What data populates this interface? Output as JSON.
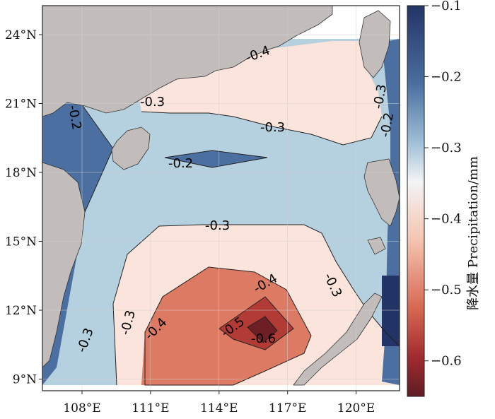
{
  "map": {
    "lat_ticks": [
      {
        "value": 24,
        "label": "24°N"
      },
      {
        "value": 21,
        "label": "21°N"
      },
      {
        "value": 18,
        "label": "18°N"
      },
      {
        "value": 15,
        "label": "15°N"
      },
      {
        "value": 12,
        "label": "12°N"
      },
      {
        "value": 9,
        "label": "9°N"
      }
    ],
    "lon_ticks": [
      {
        "value": 108,
        "label": "108°E"
      },
      {
        "value": 111,
        "label": "111°E"
      },
      {
        "value": 114,
        "label": "114°E"
      },
      {
        "value": 117,
        "label": "117°E"
      },
      {
        "value": 120,
        "label": "120°E"
      }
    ],
    "contour_labels": [
      {
        "text": "-0.3"
      },
      {
        "text": "-0.3"
      },
      {
        "text": "-0.3"
      },
      {
        "text": "-0.2"
      },
      {
        "text": "-0.3"
      },
      {
        "text": "-0.3"
      },
      {
        "text": "-0.4"
      },
      {
        "text": "-0.5"
      },
      {
        "text": "-0.6"
      },
      {
        "text": "-0.4"
      },
      {
        "text": "-0.3"
      },
      {
        "text": "-0.2"
      },
      {
        "text": "-0.2"
      },
      {
        "text": "-0.3"
      },
      {
        "text": "-0.4"
      }
    ]
  },
  "colorbar": {
    "title": "降水量 Precipitation/mm",
    "ticks": [
      "-0.1",
      "-0.2",
      "-0.3",
      "-0.4",
      "-0.5",
      "-0.6"
    ],
    "range": [
      -0.65,
      -0.1
    ]
  },
  "colors": {
    "land": "#c2bdbb",
    "ocean_blue_dark": "#4a6fa0",
    "ocean_blue_mid": "#b5d1df",
    "ocean_pink": "#fbe4dc",
    "red_light": "#dd7a63",
    "red_mid": "#b33b36",
    "red_dark": "#6e1f25",
    "blue_darkest": "#233466"
  }
}
